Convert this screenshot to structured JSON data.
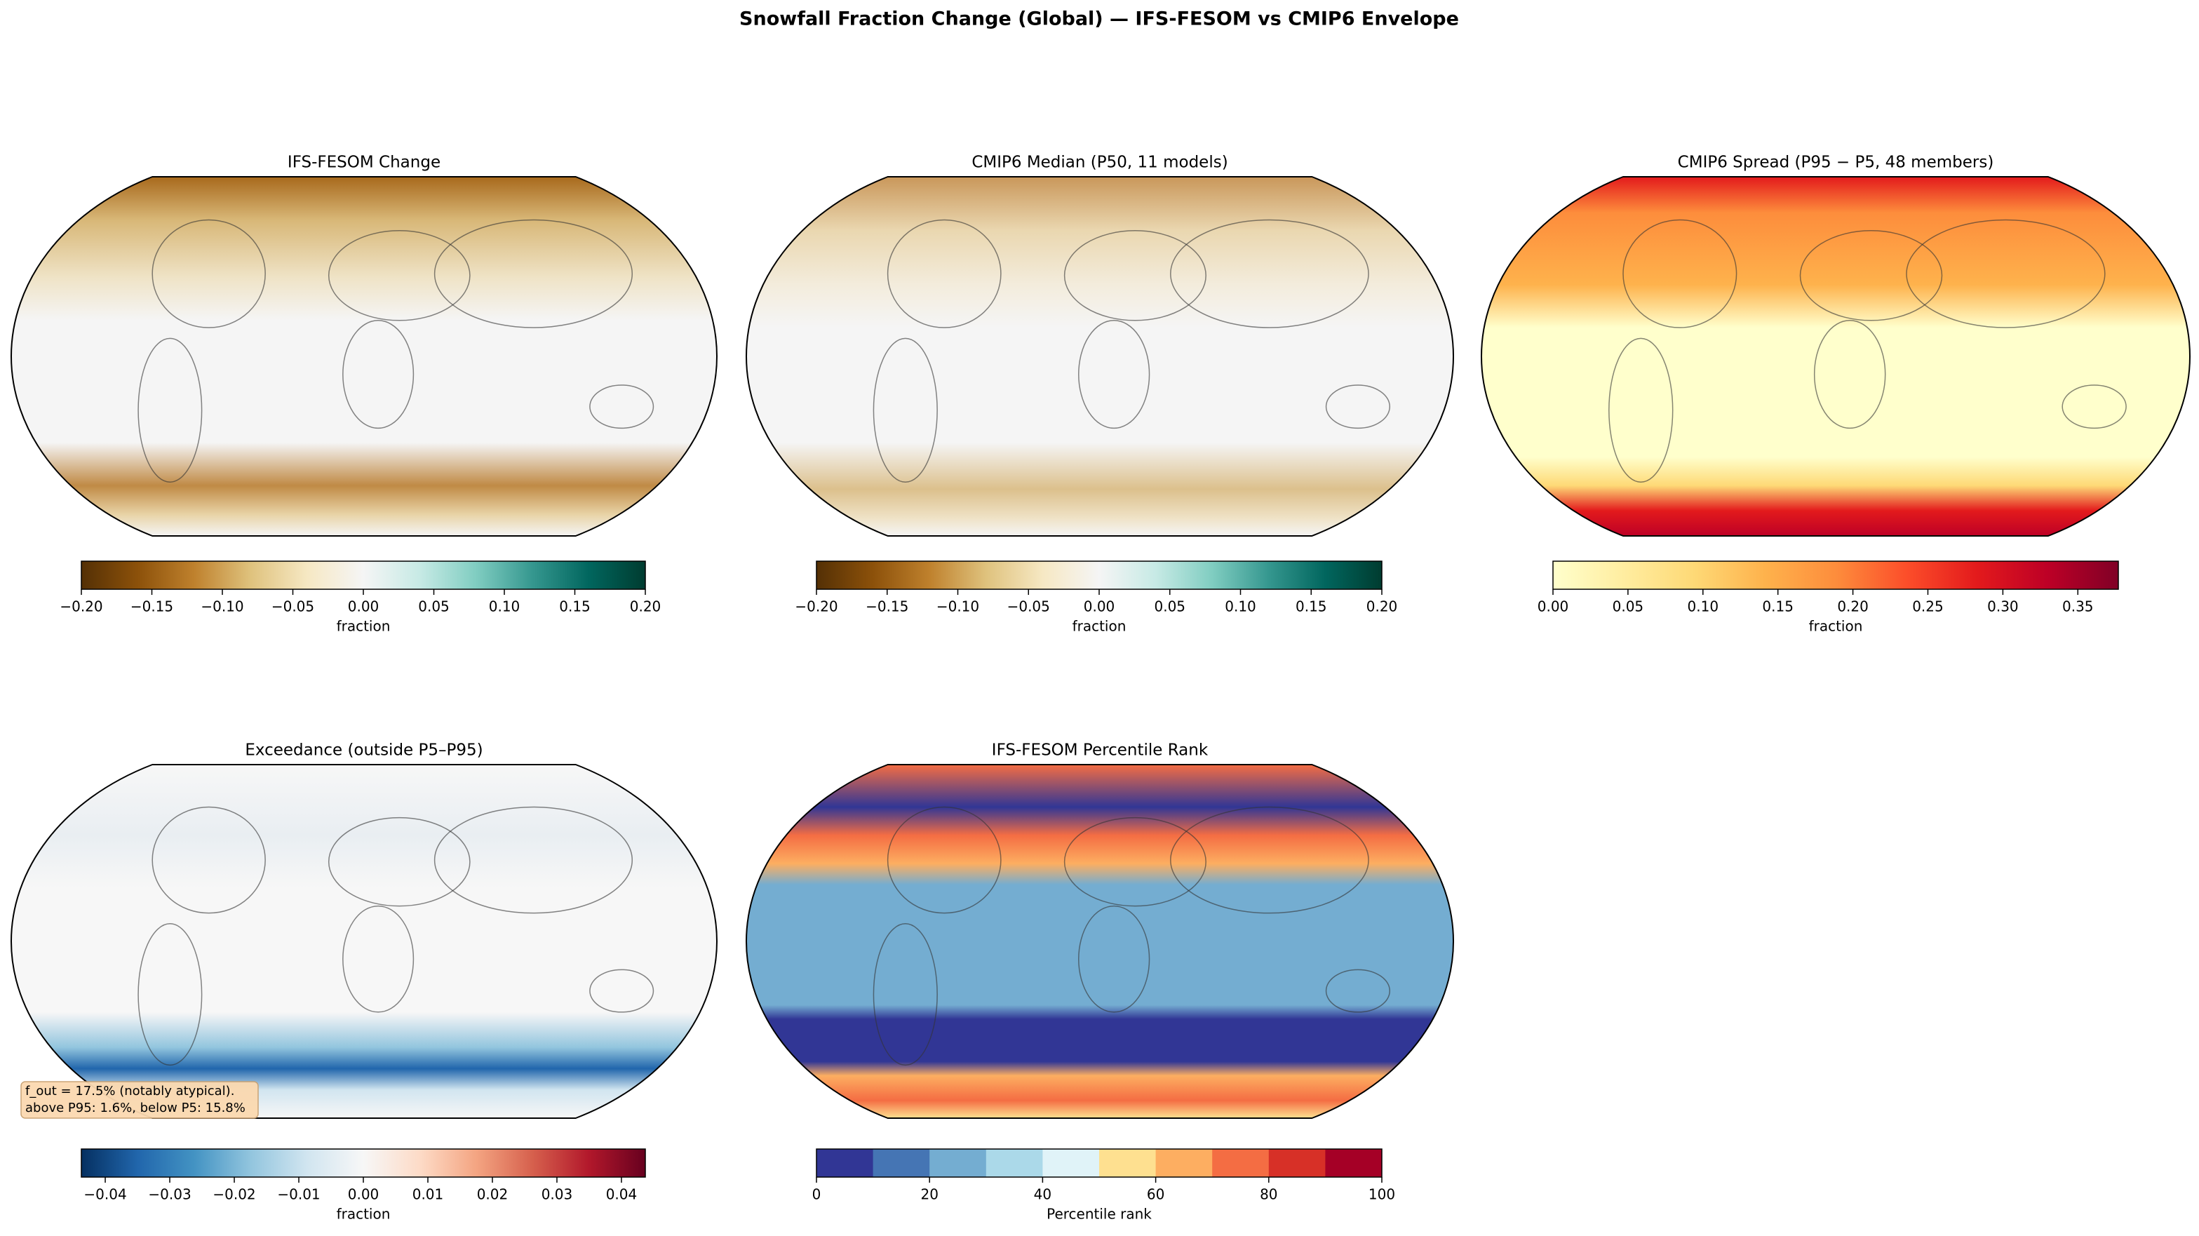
{
  "title": "Snowfall Fraction Change (Global) — IFS-FESOM vs CMIP6 Envelope",
  "chart_data": [
    {
      "type": "map",
      "title": "IFS-FESOM Change",
      "colorbar": {
        "label": "fraction",
        "lim": [
          -0.2,
          0.2
        ],
        "ticks": [
          {
            "value": -0.2,
            "label": "−0.20"
          },
          {
            "value": -0.15,
            "label": "−0.15"
          },
          {
            "value": -0.1,
            "label": "−0.10"
          },
          {
            "value": -0.05,
            "label": "−0.05"
          },
          {
            "value": 0,
            "label": "0.00"
          },
          {
            "value": 0.05,
            "label": "0.05"
          },
          {
            "value": 0.1,
            "label": "0.10"
          },
          {
            "value": 0.15,
            "label": "0.15"
          },
          {
            "value": 0.2,
            "label": "0.20"
          }
        ],
        "colors": [
          "#543005",
          "#8c510a",
          "#bf812d",
          "#dfc27d",
          "#f6e8c3",
          "#f5f5f5",
          "#c7eae5",
          "#80cdc1",
          "#35978f",
          "#01665e",
          "#003c30"
        ]
      }
    },
    {
      "type": "map",
      "title": "CMIP6 Median (P50, 11 models)",
      "colorbar": {
        "label": "fraction",
        "lim": [
          -0.2,
          0.2
        ],
        "ticks": [
          {
            "value": -0.2,
            "label": "−0.20"
          },
          {
            "value": -0.15,
            "label": "−0.15"
          },
          {
            "value": -0.1,
            "label": "−0.10"
          },
          {
            "value": -0.05,
            "label": "−0.05"
          },
          {
            "value": 0,
            "label": "0.00"
          },
          {
            "value": 0.05,
            "label": "0.05"
          },
          {
            "value": 0.1,
            "label": "0.10"
          },
          {
            "value": 0.15,
            "label": "0.15"
          },
          {
            "value": 0.2,
            "label": "0.20"
          }
        ],
        "colors": [
          "#543005",
          "#8c510a",
          "#bf812d",
          "#dfc27d",
          "#f6e8c3",
          "#f5f5f5",
          "#c7eae5",
          "#80cdc1",
          "#35978f",
          "#01665e",
          "#003c30"
        ]
      }
    },
    {
      "type": "map",
      "title": "CMIP6 Spread (P95 − P5, 48 members)",
      "colorbar": {
        "label": "fraction",
        "lim": [
          0,
          0.377
        ],
        "ticks": [
          {
            "value": 0,
            "label": "0.00"
          },
          {
            "value": 0.05,
            "label": "0.05"
          },
          {
            "value": 0.1,
            "label": "0.10"
          },
          {
            "value": 0.15,
            "label": "0.15"
          },
          {
            "value": 0.2,
            "label": "0.20"
          },
          {
            "value": 0.25,
            "label": "0.25"
          },
          {
            "value": 0.3,
            "label": "0.30"
          },
          {
            "value": 0.35,
            "label": "0.35"
          }
        ],
        "colors": [
          "#ffffcc",
          "#ffeda0",
          "#fed976",
          "#feb24c",
          "#fd8d3c",
          "#fc4e2a",
          "#e31a1c",
          "#bd0026",
          "#800026"
        ]
      }
    },
    {
      "type": "map",
      "title": "Exceedance (outside P5–P95)",
      "annotation": [
        "f_out = 17.5% (notably atypical).",
        "above P95: 1.6%, below P5: 15.8%"
      ],
      "colorbar": {
        "label": "fraction",
        "lim": [
          -0.0437,
          0.0437
        ],
        "ticks": [
          {
            "value": -0.04,
            "label": "−0.04"
          },
          {
            "value": -0.03,
            "label": "−0.03"
          },
          {
            "value": -0.02,
            "label": "−0.02"
          },
          {
            "value": -0.01,
            "label": "−0.01"
          },
          {
            "value": 0,
            "label": "0.00"
          },
          {
            "value": 0.01,
            "label": "0.01"
          },
          {
            "value": 0.02,
            "label": "0.02"
          },
          {
            "value": 0.03,
            "label": "0.03"
          },
          {
            "value": 0.04,
            "label": "0.04"
          }
        ],
        "colors": [
          "#053061",
          "#2166ac",
          "#4393c3",
          "#92c5de",
          "#d1e5f0",
          "#f7f7f7",
          "#fddbc7",
          "#f4a582",
          "#d6604d",
          "#b2182b",
          "#67001f"
        ]
      }
    },
    {
      "type": "map",
      "title": "IFS-FESOM Percentile Rank",
      "colorbar": {
        "label": "Percentile rank",
        "lim": [
          0,
          100
        ],
        "discrete": true,
        "ticks": [
          0,
          20,
          40,
          60,
          80,
          100
        ],
        "colors": [
          "#313695",
          "#4575b4",
          "#74add1",
          "#abd9e9",
          "#e0f3f8",
          "#fee090",
          "#fdae61",
          "#f46d43",
          "#d73027",
          "#a50026"
        ]
      }
    }
  ]
}
